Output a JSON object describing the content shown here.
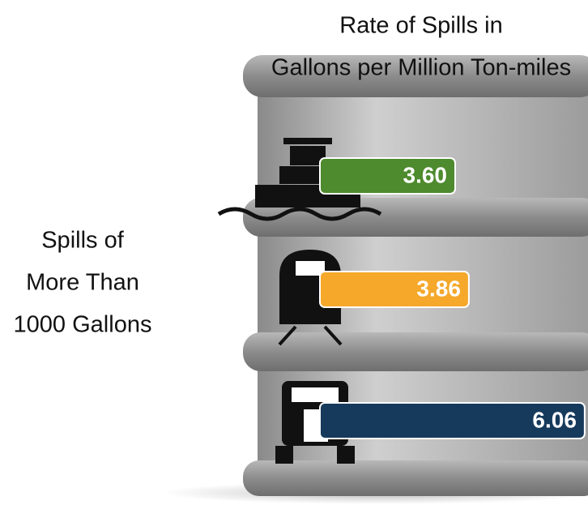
{
  "chart_data": {
    "type": "bar",
    "title": [
      "Rate of Spills in",
      "Gallons per Million Ton-miles"
    ],
    "side_label": [
      "Spills of",
      "More Than",
      "1000 Gallons"
    ],
    "categories": [
      null,
      null,
      null
    ],
    "values": [
      3.6,
      3.86,
      6.06
    ],
    "value_labels": [
      "3.60",
      "3.86",
      "6.06"
    ],
    "colors": [
      "#4e8a2e",
      "#f5a82a",
      "#163a5c"
    ]
  }
}
